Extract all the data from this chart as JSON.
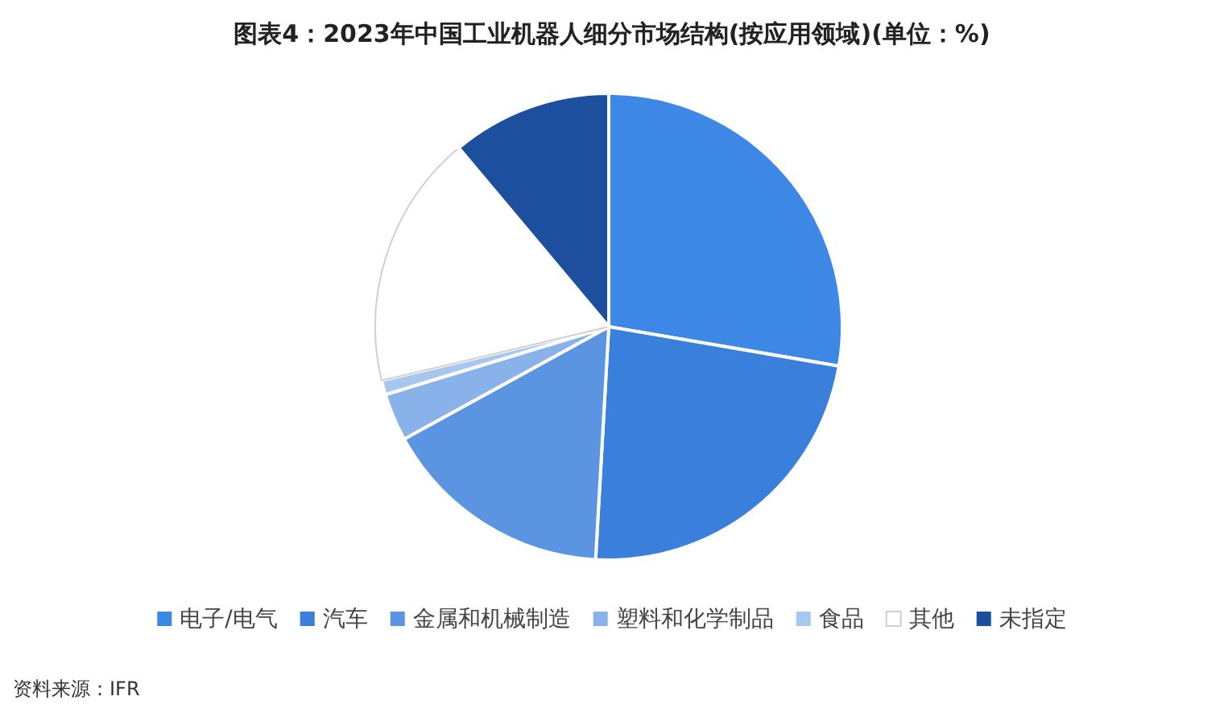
{
  "chart_data": {
    "type": "pie",
    "title": "图表4：2023年中国工业机器人细分市场结构(按应用领域)(单位：%)",
    "categories": [
      "电子/电气",
      "汽车",
      "金属和机械制造",
      "塑料和化学制品",
      "食品",
      "其他",
      "未指定"
    ],
    "values": [
      27.7,
      23.2,
      16.1,
      3.3,
      1.0,
      17.6,
      11.1
    ],
    "colors": [
      "#3d88e6",
      "#3b7fdc",
      "#5b94e0",
      "#8ab2ea",
      "#a8c7f0",
      "#ffffff",
      "#1c4f9e"
    ],
    "legend": "bottom",
    "annotations": [
      "资料来源：IFR"
    ]
  }
}
